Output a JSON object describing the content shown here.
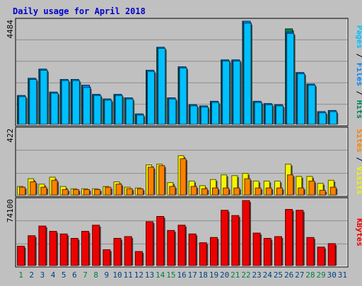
{
  "colors": {
    "background": "#c0c0c0",
    "plot_bg": "#c0c0c0",
    "grid": "#8c8c8c",
    "title": "#0000cc",
    "hits": "#00805c",
    "files": "#0080ff",
    "pages": "#00c0ff",
    "visits": "#f5f500",
    "sites": "#ff8000",
    "kbytes": "#ee0000",
    "weekday_tick": "#004080",
    "weekend_tick": "#008040"
  },
  "chart_data": {
    "type": "bar",
    "title": "Daily usage for April 2018",
    "x": [
      "1",
      "2",
      "3",
      "4",
      "5",
      "6",
      "7",
      "8",
      "9",
      "10",
      "11",
      "12",
      "13",
      "14",
      "15",
      "16",
      "17",
      "18",
      "19",
      "20",
      "21",
      "22",
      "23",
      "24",
      "25",
      "26",
      "27",
      "28",
      "29",
      "30",
      "31"
    ],
    "weekend_days": [
      "1",
      "7",
      "8",
      "14",
      "15",
      "21",
      "22",
      "28",
      "29"
    ],
    "panels": [
      {
        "id": "hits_files_pages",
        "ymax_label": "4484",
        "ylim": [
          0,
          4484
        ],
        "side_labels": [
          {
            "text": "Pages",
            "color_key": "pages"
          },
          {
            "text": "Files",
            "color_key": "files"
          },
          {
            "text": "Hits",
            "color_key": "hits"
          }
        ],
        "series": [
          {
            "name": "Hits",
            "color_key": "hits",
            "values": [
              1250,
              2000,
              2400,
              1400,
              1950,
              1950,
              1700,
              1300,
              1100,
              1300,
              1150,
              450,
              2350,
              3350,
              1150,
              2500,
              850,
              800,
              1000,
              2800,
              2800,
              4484,
              1000,
              900,
              850,
              4150,
              2250,
              1750,
              550,
              600,
              null
            ]
          },
          {
            "name": "Files",
            "color_key": "files",
            "values": [
              1250,
              2000,
              2400,
              1400,
              1950,
              1950,
              1700,
              1300,
              1100,
              1300,
              1150,
              450,
              2350,
              3350,
              1150,
              2500,
              850,
              800,
              1000,
              2800,
              2800,
              4484,
              1000,
              900,
              850,
              4000,
              2250,
              1750,
              550,
              600,
              null
            ]
          },
          {
            "name": "Pages",
            "color_key": "pages",
            "values": [
              1200,
              1950,
              2350,
              1350,
              1900,
              1900,
              1600,
              1250,
              1050,
              1250,
              1100,
              400,
              2300,
              3300,
              1100,
              2450,
              800,
              750,
              950,
              2750,
              2750,
              4400,
              950,
              850,
              800,
              3950,
              2200,
              1700,
              500,
              550,
              null
            ]
          }
        ]
      },
      {
        "id": "visits_sites",
        "ymax_label": "422",
        "ylim": [
          0,
          422
        ],
        "side_labels": [
          {
            "text": "Sites",
            "color_key": "sites"
          },
          {
            "text": "Visits",
            "color_key": "visits"
          }
        ],
        "series": [
          {
            "name": "Visits",
            "color_key": "visits",
            "values": [
              55,
              105,
              70,
              115,
              55,
              40,
              40,
              40,
              55,
              85,
              50,
              45,
              195,
              200,
              80,
              255,
              90,
              60,
              100,
              130,
              125,
              140,
              90,
              90,
              90,
              200,
              120,
              120,
              75,
              95,
              null
            ]
          },
          {
            "name": "Sites",
            "color_key": "sites",
            "values": [
              50,
              85,
              50,
              95,
              35,
              35,
              35,
              35,
              50,
              70,
              40,
              40,
              180,
              190,
              55,
              235,
              55,
              40,
              45,
              45,
              45,
              105,
              45,
              45,
              45,
              130,
              45,
              90,
              30,
              50,
              null
            ]
          }
        ]
      },
      {
        "id": "kbytes",
        "ymax_label": "74100",
        "ylim": [
          0,
          74100
        ],
        "side_labels": [
          {
            "text": "KBytes",
            "color_key": "kbytes"
          }
        ],
        "series": [
          {
            "name": "KBytes",
            "color_key": "kbytes",
            "values": [
              22000,
              34000,
              45000,
              39000,
              36000,
              31000,
              39000,
              46000,
              18000,
              31000,
              33000,
              16000,
              50000,
              56000,
              40000,
              46000,
              36000,
              26000,
              32000,
              63000,
              57000,
              74100,
              37000,
              31000,
              33000,
              64000,
              63000,
              32000,
              21000,
              25000,
              null
            ]
          }
        ]
      }
    ]
  }
}
